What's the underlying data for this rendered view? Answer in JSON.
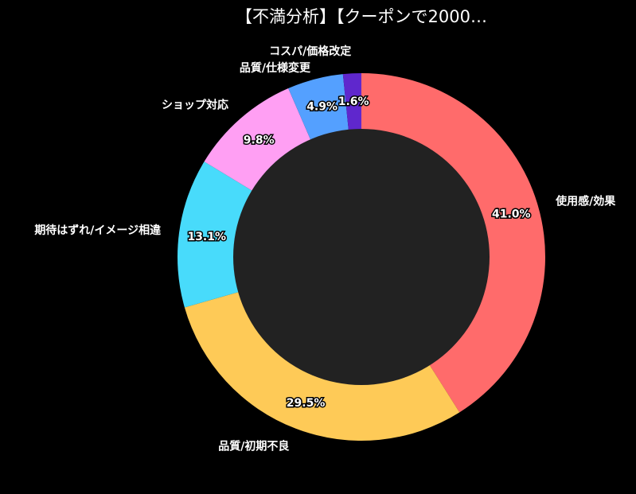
{
  "chart_data": {
    "type": "pie",
    "subtype": "donut",
    "title": "【不満分析】【クーポンで2000…",
    "background": "#000000",
    "hole_color": "#222222",
    "start": "top",
    "direction": "clockwise",
    "categories": [
      "使用感/効果",
      "品質/初期不良",
      "期待はずれ/イメージ相違",
      "ショップ対応",
      "品質/仕様変更",
      "コスパ/価格改定"
    ],
    "values": [
      41.0,
      29.5,
      13.1,
      9.8,
      4.9,
      1.6
    ],
    "labels": [
      "41.0%",
      "29.5%",
      "13.1%",
      "9.8%",
      "4.9%",
      "1.6%"
    ],
    "colors": [
      "#ff6b6b",
      "#feca57",
      "#48dbfb",
      "#ff9ff3",
      "#54a0ff",
      "#5f27cd"
    ]
  }
}
